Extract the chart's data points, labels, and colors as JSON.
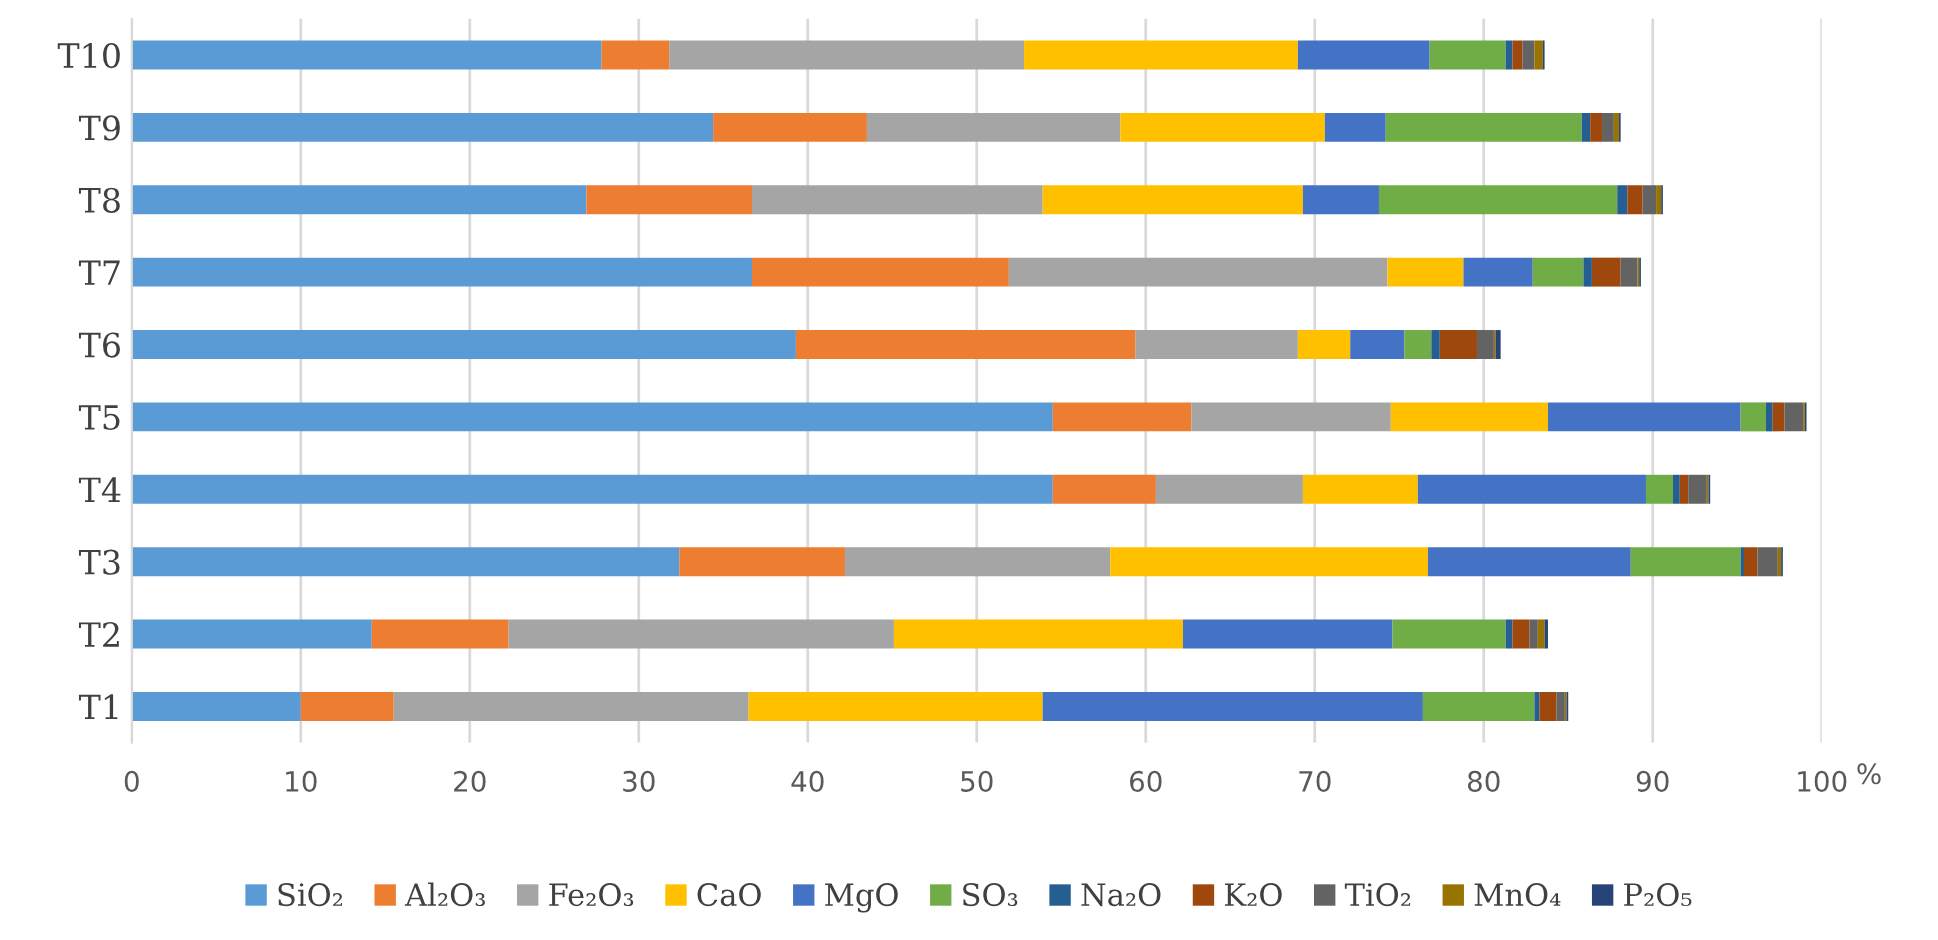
{
  "chart_data": {
    "type": "bar",
    "orientation": "horizontal",
    "stacked": true,
    "categories": [
      "T10",
      "T9",
      "T8",
      "T7",
      "T6",
      "T5",
      "T4",
      "T3",
      "T2",
      "T1"
    ],
    "series": [
      {
        "name": "SiO₂",
        "color": "#5b9bd5",
        "values": [
          27.8,
          34.4,
          26.9,
          36.7,
          39.3,
          54.5,
          54.5,
          32.4,
          14.2,
          10.0
        ]
      },
      {
        "name": "Al₂O₃",
        "color": "#ed7d31",
        "values": [
          4.0,
          9.1,
          9.8,
          15.2,
          20.1,
          8.2,
          6.1,
          9.8,
          8.1,
          5.5
        ]
      },
      {
        "name": "Fe₂O₃",
        "color": "#a5a5a5",
        "values": [
          21.0,
          15.0,
          17.2,
          22.4,
          9.6,
          11.8,
          8.7,
          15.7,
          22.8,
          21.0
        ]
      },
      {
        "name": "CaO",
        "color": "#ffc000",
        "values": [
          16.2,
          12.1,
          15.4,
          4.5,
          3.1,
          9.3,
          6.8,
          18.8,
          17.1,
          17.4
        ]
      },
      {
        "name": "MgO",
        "color": "#4472c4",
        "values": [
          7.8,
          3.6,
          4.5,
          4.1,
          3.2,
          11.4,
          13.5,
          12.0,
          12.4,
          22.5
        ]
      },
      {
        "name": "SO₃",
        "color": "#70ad47",
        "values": [
          4.5,
          11.6,
          14.1,
          3.0,
          1.6,
          1.5,
          1.6,
          6.5,
          6.7,
          6.6
        ]
      },
      {
        "name": "Na₂O",
        "color": "#255e91",
        "values": [
          0.4,
          0.5,
          0.6,
          0.5,
          0.5,
          0.4,
          0.4,
          0.2,
          0.4,
          0.3
        ]
      },
      {
        "name": "K₂O",
        "color": "#9e480e",
        "values": [
          0.6,
          0.7,
          0.9,
          1.7,
          2.2,
          0.7,
          0.5,
          0.8,
          1.0,
          1.0
        ]
      },
      {
        "name": "TiO₂",
        "color": "#636363",
        "values": [
          0.7,
          0.7,
          0.8,
          1.0,
          1.0,
          1.1,
          1.1,
          1.2,
          0.5,
          0.5
        ]
      },
      {
        "name": "MnO₄",
        "color": "#997300",
        "values": [
          0.5,
          0.3,
          0.3,
          0.1,
          0.1,
          0.1,
          0.1,
          0.2,
          0.4,
          0.1
        ]
      },
      {
        "name": "P₂O₅",
        "color": "#264478",
        "values": [
          0.1,
          0.1,
          0.1,
          0.1,
          0.3,
          0.1,
          0.1,
          0.1,
          0.2,
          0.1
        ]
      }
    ],
    "xlabel": "%",
    "xlim": [
      0,
      100
    ],
    "xticks": [
      0,
      10,
      20,
      30,
      40,
      50,
      60,
      70,
      80,
      90,
      100
    ],
    "grid": "x",
    "legend": "bottom"
  }
}
